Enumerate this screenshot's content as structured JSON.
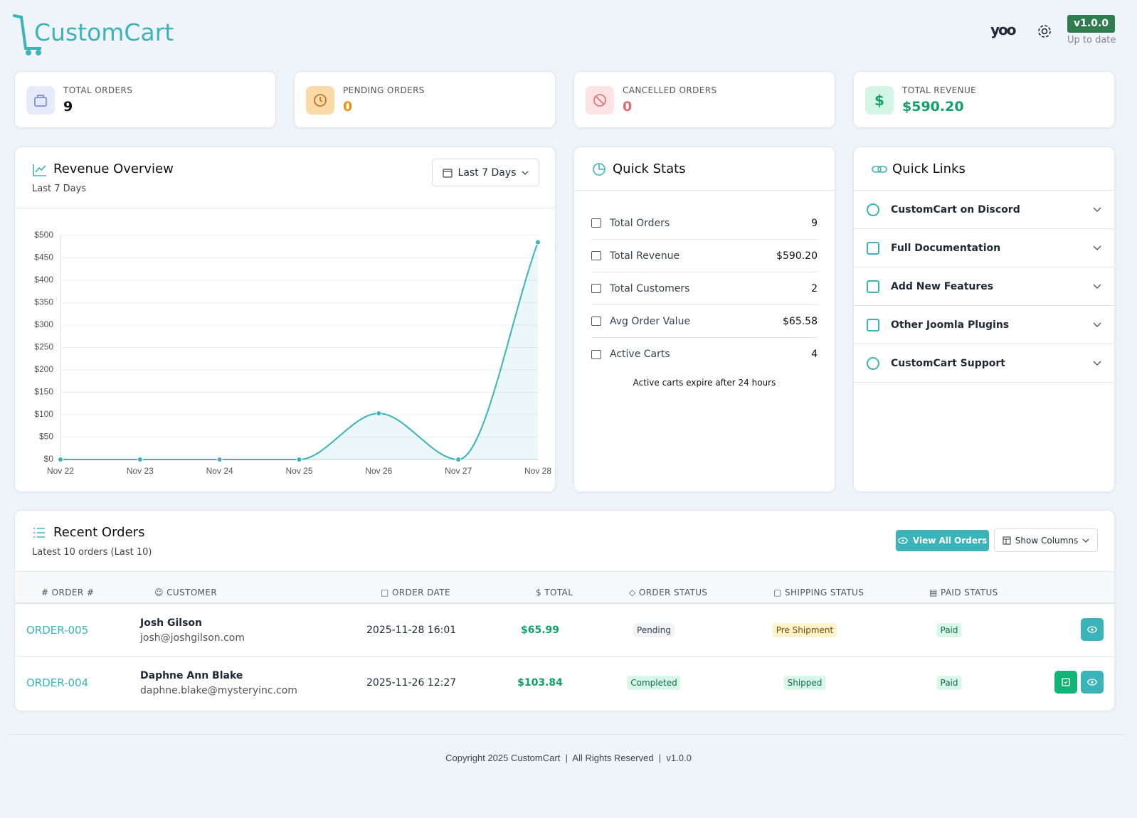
{
  "header": {
    "logo": "CustomCart",
    "brand": "yoo",
    "version": "v1.0.0",
    "version_status": "Up to date"
  },
  "stat_cards": [
    {
      "label": "TOTAL ORDERS",
      "value": "9"
    },
    {
      "label": "PENDING ORDERS",
      "value": "0"
    },
    {
      "label": "CANCELLED ORDERS",
      "value": "0"
    },
    {
      "label": "TOTAL REVENUE",
      "value": "$590.20"
    }
  ],
  "revenue_panel": {
    "range_select": "Last 7 Days"
  },
  "chart_data": {
    "type": "line",
    "title": "Revenue Overview",
    "subtitle": "Last 7 Days",
    "categories": [
      "Nov 22",
      "Nov 23",
      "Nov 24",
      "Nov 25",
      "Nov 26",
      "Nov 27",
      "Nov 28"
    ],
    "values": [
      0,
      0,
      0,
      0,
      103,
      0,
      485
    ],
    "color": "#3bb4b9",
    "ylim": [
      0,
      500
    ],
    "yticks": [
      {
        "value": 0,
        "label": "$0"
      },
      {
        "value": 50,
        "label": "$50"
      },
      {
        "value": 100,
        "label": "$100"
      },
      {
        "value": 150,
        "label": "$150"
      },
      {
        "value": 200,
        "label": "$200"
      },
      {
        "value": 250,
        "label": "$250"
      },
      {
        "value": 300,
        "label": "$300"
      },
      {
        "value": 350,
        "label": "$350"
      },
      {
        "value": 400,
        "label": "$400"
      },
      {
        "value": 450,
        "label": "$450"
      },
      {
        "value": 500,
        "label": "$500"
      }
    ],
    "grid": true
  },
  "quick_stats": {
    "title": "Quick Stats",
    "items": [
      {
        "label": "Total Orders",
        "value": "9"
      },
      {
        "label": "Total Revenue",
        "value": "$590.20"
      },
      {
        "label": "Total Customers",
        "value": "2"
      },
      {
        "label": "Avg Order Value",
        "value": "$65.58"
      },
      {
        "label": "Active Carts",
        "value": "4"
      }
    ],
    "note": "Active carts expire after 24 hours"
  },
  "quick_links": {
    "title": "Quick Links",
    "items": [
      "CustomCart on Discord",
      "Full Documentation",
      "Add New Features",
      "Other Joomla Plugins",
      "CustomCart Support"
    ]
  },
  "recent_orders": {
    "title": "Recent Orders",
    "subtitle": "Latest 10 orders (Last 10)",
    "view_all": "View All Orders",
    "show_columns": "Show Columns",
    "columns": [
      "ORDER #",
      "CUSTOMER",
      "ORDER DATE",
      "TOTAL",
      "ORDER STATUS",
      "SHIPPING STATUS",
      "PAID STATUS"
    ],
    "rows": [
      {
        "order": "ORDER-005",
        "customer": "Josh Gilson",
        "email": "josh@joshgilson.com",
        "date": "2025-11-28 16:01",
        "total": "$65.99",
        "order_status": "Pending",
        "shipping_status": "Pre Shipment",
        "paid_status": "Paid"
      },
      {
        "order": "ORDER-004",
        "customer": "Daphne Ann Blake",
        "email": "daphne.blake@mysteryinc.com",
        "date": "2025-11-26 12:27",
        "total": "$103.84",
        "order_status": "Completed",
        "shipping_status": "Shipped",
        "paid_status": "Paid"
      }
    ]
  },
  "footer": {
    "copyright": "Copyright 2025 CustomCart",
    "rights": "All Rights Reserved",
    "version": "v1.0.0"
  }
}
